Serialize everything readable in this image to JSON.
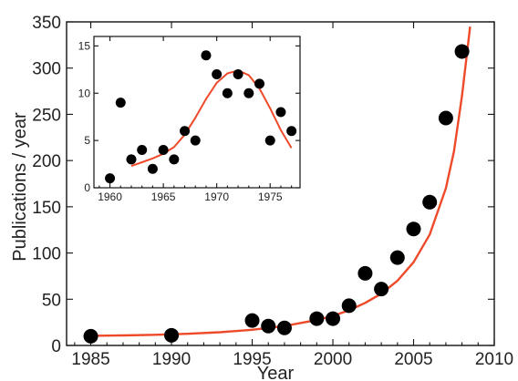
{
  "chart_data": [
    {
      "type": "scatter",
      "title": "",
      "xlabel": "Year",
      "ylabel": "Publications / year",
      "xlim": [
        1983.5,
        2010
      ],
      "ylim": [
        0,
        350
      ],
      "xticks": [
        1985,
        1990,
        1995,
        2000,
        2005,
        2010
      ],
      "yticks": [
        0,
        50,
        100,
        150,
        200,
        250,
        300,
        350
      ],
      "grid": false,
      "legend": "none",
      "series": [
        {
          "marker_color": "#000000",
          "points": [
            {
              "x": 1985,
              "y": 10
            },
            {
              "x": 1990,
              "y": 11
            },
            {
              "x": 1995,
              "y": 27
            },
            {
              "x": 1996,
              "y": 21
            },
            {
              "x": 1997,
              "y": 19
            },
            {
              "x": 1999,
              "y": 29
            },
            {
              "x": 2000,
              "y": 29
            },
            {
              "x": 2001,
              "y": 43
            },
            {
              "x": 2002,
              "y": 78
            },
            {
              "x": 2003,
              "y": 61
            },
            {
              "x": 2004,
              "y": 95
            },
            {
              "x": 2005,
              "y": 126
            },
            {
              "x": 2006,
              "y": 155
            },
            {
              "x": 2007,
              "y": 246
            },
            {
              "x": 2008,
              "y": 318
            }
          ]
        },
        {
          "type": "line",
          "line_color": "#ee4a2a",
          "x": [
            1985,
            1987,
            1989,
            1991,
            1993,
            1995,
            1997,
            1999,
            2000,
            2001,
            2002,
            2003,
            2004,
            2005,
            2006,
            2007,
            2007.5,
            2008,
            2008.5
          ],
          "y": [
            10.5,
            10.8,
            11.5,
            12.6,
            14.3,
            17,
            21,
            27.5,
            32,
            38,
            46,
            56,
            70,
            90,
            120,
            170,
            210,
            270,
            345
          ]
        }
      ]
    },
    {
      "type": "scatter",
      "role": "inset",
      "title": "",
      "xlabel": "",
      "ylabel": "",
      "xlim": [
        1958.5,
        1977.8
      ],
      "ylim": [
        0,
        16
      ],
      "xticks": [
        1960,
        1965,
        1970,
        1975
      ],
      "yticks": [
        0,
        5,
        10,
        15
      ],
      "grid": false,
      "series": [
        {
          "marker_color": "#000000",
          "points": [
            {
              "x": 1960,
              "y": 1
            },
            {
              "x": 1961,
              "y": 9
            },
            {
              "x": 1962,
              "y": 3
            },
            {
              "x": 1963,
              "y": 4
            },
            {
              "x": 1964,
              "y": 2
            },
            {
              "x": 1965,
              "y": 4
            },
            {
              "x": 1966,
              "y": 3
            },
            {
              "x": 1967,
              "y": 6
            },
            {
              "x": 1968,
              "y": 5
            },
            {
              "x": 1969,
              "y": 14
            },
            {
              "x": 1970,
              "y": 12
            },
            {
              "x": 1971,
              "y": 10
            },
            {
              "x": 1972,
              "y": 12
            },
            {
              "x": 1973,
              "y": 10
            },
            {
              "x": 1974,
              "y": 11
            },
            {
              "x": 1975,
              "y": 5
            },
            {
              "x": 1976,
              "y": 8
            },
            {
              "x": 1977,
              "y": 6
            }
          ]
        },
        {
          "type": "line",
          "line_color": "#ee4a2a",
          "x": [
            1962,
            1963,
            1964,
            1965,
            1966,
            1967,
            1968,
            1969,
            1970,
            1971,
            1972,
            1973,
            1974,
            1975,
            1976,
            1977
          ],
          "y": [
            2.3,
            2.7,
            3.1,
            3.6,
            4.3,
            5.6,
            7.4,
            9.4,
            11.1,
            12.1,
            12.4,
            11.9,
            10.5,
            8.4,
            6.1,
            4.2
          ]
        }
      ]
    }
  ]
}
